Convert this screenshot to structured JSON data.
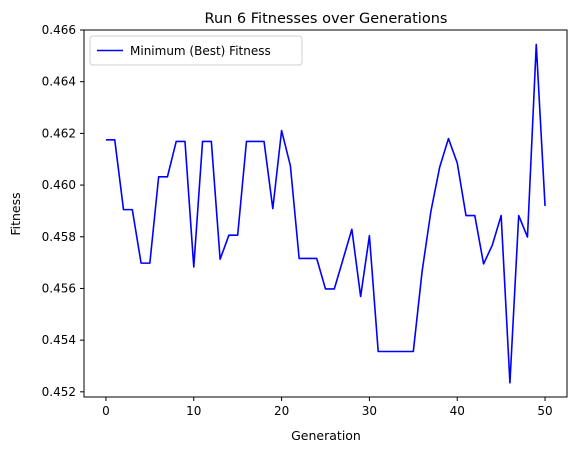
{
  "chart_data": {
    "type": "line",
    "title": "Run 6 Fitnesses over Generations",
    "xlabel": "Generation",
    "ylabel": "Fitness",
    "xlim": [
      -2.5,
      52.5
    ],
    "ylim": [
      0.4518,
      0.466
    ],
    "xticks": [
      0,
      10,
      20,
      30,
      40,
      50
    ],
    "xtick_labels": [
      "0",
      "10",
      "20",
      "30",
      "40",
      "50"
    ],
    "yticks": [
      0.452,
      0.454,
      0.456,
      0.458,
      0.46,
      0.462,
      0.464,
      0.466
    ],
    "ytick_labels": [
      "0.452",
      "0.454",
      "0.456",
      "0.458",
      "0.460",
      "0.462",
      "0.464",
      "0.466"
    ],
    "grid": false,
    "legend_position": "upper-left",
    "series": [
      {
        "name": "Minimum (Best) Fitness",
        "color": "#0000ff",
        "x": [
          0,
          1,
          2,
          3,
          4,
          5,
          6,
          7,
          8,
          9,
          10,
          11,
          12,
          13,
          14,
          15,
          16,
          17,
          18,
          19,
          20,
          21,
          22,
          23,
          24,
          25,
          26,
          27,
          28,
          29,
          30,
          31,
          32,
          33,
          34,
          35,
          36,
          37,
          38,
          39,
          40,
          41,
          42,
          43,
          44,
          45,
          46,
          47,
          48,
          49,
          50
        ],
        "values": [
          0.46175,
          0.46175,
          0.45905,
          0.45905,
          0.45698,
          0.45698,
          0.46032,
          0.46032,
          0.46169,
          0.46169,
          0.45683,
          0.46169,
          0.46169,
          0.45713,
          0.45806,
          0.45806,
          0.46169,
          0.46169,
          0.46169,
          0.45909,
          0.46211,
          0.46075,
          0.45716,
          0.45716,
          0.45716,
          0.45598,
          0.45598,
          0.45713,
          0.45829,
          0.45569,
          0.45804,
          0.45356,
          0.45356,
          0.45356,
          0.45356,
          0.45356,
          0.45666,
          0.45898,
          0.46069,
          0.4618,
          0.46086,
          0.45882,
          0.45882,
          0.45695,
          0.45768,
          0.45882,
          0.45235,
          0.45882,
          0.45799,
          0.46544,
          0.45919
        ]
      }
    ]
  }
}
